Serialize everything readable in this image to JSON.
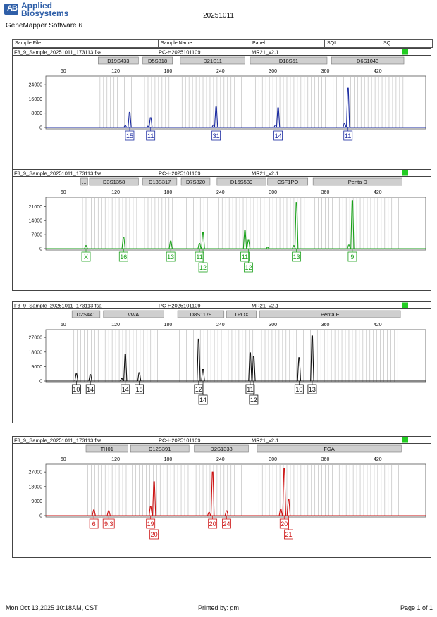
{
  "header": {
    "logo_mark": "AB",
    "brand_line1": "Applied",
    "brand_line2": "Biosystems",
    "app_name": "GeneMapper Software 6",
    "doc_title": "20251011"
  },
  "columns": [
    "Sample File",
    "Sample Name",
    "Panel",
    "SQI",
    "SQ"
  ],
  "panels": [
    {
      "file": "F3_9_Sample_20251011_173113.fsa",
      "sample": "PC-H2025101109",
      "panel": "MR21_v2.1",
      "color": "#1a2aa0",
      "yticks": [
        0,
        8000,
        16000,
        24000
      ],
      "ymax": 28000,
      "loci": [
        {
          "name": "D19S433",
          "s": 100,
          "e": 146
        },
        {
          "name": "D5S818",
          "s": 151,
          "e": 185
        },
        {
          "name": "D21S11",
          "s": 194,
          "e": 268
        },
        {
          "name": "D18S51",
          "s": 274,
          "e": 362
        },
        {
          "name": "D6S1043",
          "s": 367,
          "e": 450
        }
      ],
      "peaks": [
        {
          "x": 136,
          "h": 8500
        },
        {
          "x": 131,
          "h": 1000
        },
        {
          "x": 160,
          "h": 5500
        },
        {
          "x": 157,
          "h": 700
        },
        {
          "x": 235,
          "h": 11500
        },
        {
          "x": 232,
          "h": 1400
        },
        {
          "x": 306,
          "h": 11000
        },
        {
          "x": 303,
          "h": 1300
        },
        {
          "x": 386,
          "h": 22000
        },
        {
          "x": 382,
          "h": 2300
        }
      ],
      "alleles": [
        {
          "text": "15",
          "x": 136,
          "row": 0
        },
        {
          "text": "11",
          "x": 160,
          "row": 0
        },
        {
          "text": "31",
          "x": 235,
          "row": 0
        },
        {
          "text": "14",
          "x": 306,
          "row": 0
        },
        {
          "text": "11",
          "x": 386,
          "row": 0
        }
      ]
    },
    {
      "file": "F3_9_Sample_20251011_173113.fsa",
      "sample": "PC-H2025101109",
      "panel": "MR21_v2.1",
      "color": "#1aa01a",
      "yticks": [
        0,
        7000,
        14000,
        21000
      ],
      "ymax": 25000,
      "loci": [
        {
          "name": "...",
          "s": 80,
          "e": 88
        },
        {
          "name": "D3S1358",
          "s": 90,
          "e": 146
        },
        {
          "name": "D13S317",
          "s": 151,
          "e": 190
        },
        {
          "name": "D7S820",
          "s": 195,
          "e": 228
        },
        {
          "name": "D16S539",
          "s": 236,
          "e": 292
        },
        {
          "name": "CSF1PO",
          "s": 294,
          "e": 340
        },
        {
          "name": "Penta D",
          "s": 346,
          "e": 448
        }
      ],
      "peaks": [
        {
          "x": 86,
          "h": 1500
        },
        {
          "x": 129,
          "h": 5800
        },
        {
          "x": 183,
          "h": 3800
        },
        {
          "x": 216,
          "h": 2600
        },
        {
          "x": 220,
          "h": 8000
        },
        {
          "x": 268,
          "h": 9000
        },
        {
          "x": 272,
          "h": 4200
        },
        {
          "x": 327,
          "h": 23000
        },
        {
          "x": 324,
          "h": 1500
        },
        {
          "x": 294,
          "h": 700
        },
        {
          "x": 391,
          "h": 24000
        },
        {
          "x": 387,
          "h": 1800
        }
      ],
      "alleles": [
        {
          "text": "X",
          "x": 86,
          "row": 0
        },
        {
          "text": "16",
          "x": 129,
          "row": 0
        },
        {
          "text": "13",
          "x": 183,
          "row": 0
        },
        {
          "text": "11",
          "x": 216,
          "row": 0
        },
        {
          "text": "12",
          "x": 220,
          "row": 1
        },
        {
          "text": "11",
          "x": 268,
          "row": 0
        },
        {
          "text": "12",
          "x": 272,
          "row": 1
        },
        {
          "text": "13",
          "x": 327,
          "row": 0
        },
        {
          "text": "9",
          "x": 391,
          "row": 0
        }
      ]
    },
    {
      "file": "F3_9_Sample_20251011_173113.fsa",
      "sample": "PC-H2025101109",
      "panel": "MR21_v2.1",
      "color": "#111111",
      "yticks": [
        0,
        9000,
        18000,
        27000
      ],
      "ymax": 31000,
      "loci": [
        {
          "name": "D2S441",
          "s": 70,
          "e": 102
        },
        {
          "name": "vWA",
          "s": 106,
          "e": 175
        },
        {
          "name": "D8S1179",
          "s": 191,
          "e": 244
        },
        {
          "name": "TPOX",
          "s": 247,
          "e": 281
        },
        {
          "name": "Penta E",
          "s": 285,
          "e": 446
        }
      ],
      "peaks": [
        {
          "x": 75,
          "h": 4500
        },
        {
          "x": 91,
          "h": 4000
        },
        {
          "x": 131,
          "h": 16500
        },
        {
          "x": 127,
          "h": 1500
        },
        {
          "x": 147,
          "h": 5200
        },
        {
          "x": 215,
          "h": 26000
        },
        {
          "x": 220,
          "h": 7200
        },
        {
          "x": 274,
          "h": 17500
        },
        {
          "x": 278,
          "h": 15500
        },
        {
          "x": 330,
          "h": 14500
        },
        {
          "x": 345,
          "h": 28000
        }
      ],
      "alleles": [
        {
          "text": "10",
          "x": 75,
          "row": 0
        },
        {
          "text": "14",
          "x": 91,
          "row": 0
        },
        {
          "text": "14",
          "x": 131,
          "row": 0
        },
        {
          "text": "18",
          "x": 147,
          "row": 0
        },
        {
          "text": "12",
          "x": 215,
          "row": 0
        },
        {
          "text": "14",
          "x": 220,
          "row": 1
        },
        {
          "text": "11",
          "x": 274,
          "row": 0
        },
        {
          "text": "12",
          "x": 278,
          "row": 1
        },
        {
          "text": "10",
          "x": 330,
          "row": 0
        },
        {
          "text": "13",
          "x": 345,
          "row": 0
        }
      ]
    },
    {
      "file": "F3_9_Sample_20251011_173113.fsa",
      "sample": "PC-H2025101109",
      "panel": "MR21_v2.1",
      "color": "#cc1111",
      "yticks": [
        0,
        9000,
        18000,
        27000
      ],
      "ymax": 31000,
      "loci": [
        {
          "name": "TH01",
          "s": 86,
          "e": 134
        },
        {
          "name": "D12S391",
          "s": 137,
          "e": 204
        },
        {
          "name": "D2S1338",
          "s": 210,
          "e": 272
        },
        {
          "name": "FGA",
          "s": 282,
          "e": 447
        }
      ],
      "peaks": [
        {
          "x": 95,
          "h": 3500
        },
        {
          "x": 112,
          "h": 3000
        },
        {
          "x": 160,
          "h": 5500
        },
        {
          "x": 164,
          "h": 21000
        },
        {
          "x": 231,
          "h": 27000
        },
        {
          "x": 227,
          "h": 2000
        },
        {
          "x": 247,
          "h": 3000
        },
        {
          "x": 313,
          "h": 29000
        },
        {
          "x": 318,
          "h": 10000
        },
        {
          "x": 309,
          "h": 4000
        }
      ],
      "alleles": [
        {
          "text": "6",
          "x": 95,
          "row": 0
        },
        {
          "text": "9.3",
          "x": 112,
          "row": 0
        },
        {
          "text": "19",
          "x": 160,
          "row": 0
        },
        {
          "text": "20",
          "x": 164,
          "row": 1
        },
        {
          "text": "20",
          "x": 231,
          "row": 0
        },
        {
          "text": "24",
          "x": 247,
          "row": 0
        },
        {
          "text": "20",
          "x": 313,
          "row": 0
        },
        {
          "text": "21",
          "x": 318,
          "row": 1
        }
      ]
    }
  ],
  "x_ticks": [
    60,
    120,
    180,
    240,
    300,
    360,
    420
  ],
  "footer": {
    "left": "Mon Oct 13,2025 10:18AM, CST",
    "center": "Printed by: gm",
    "right": "Page 1 of 1"
  }
}
